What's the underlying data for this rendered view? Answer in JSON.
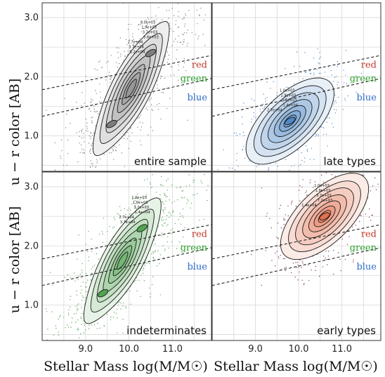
{
  "figure": {
    "x_axis_label": "Stellar Mass log(M/M☉)",
    "y_axis_label": "u − r color [AB]"
  },
  "colors": {
    "red_label": "#c0392b",
    "green_label": "#2ca02c",
    "blue_label": "#2e6bc9"
  },
  "chart_data": [
    {
      "type": "scatter",
      "panel": "entire sample",
      "label": "entire sample",
      "base_color": "#6e6e6e",
      "xlim": [
        8.0,
        11.9
      ],
      "ylim": [
        0.4,
        3.25
      ],
      "xticks": [
        "9.0",
        "10.0",
        "11.0"
      ],
      "yticks": [
        "1.0",
        "2.0",
        "3.0"
      ],
      "dividers": [
        [
          [
            8.0,
            1.78
          ],
          [
            11.9,
            2.36
          ]
        ],
        [
          [
            8.0,
            1.33
          ],
          [
            11.9,
            1.97
          ]
        ]
      ],
      "region_labels": [
        "red",
        "green",
        "blue"
      ],
      "contour_labels": [
        "9.0e+03",
        "1.9e+03",
        "3.7e+03",
        "5.6e+03",
        "2.7e+04",
        "3.7e+04",
        "5.2e+04"
      ],
      "modes": [
        {
          "x": 9.6,
          "y": 1.2
        },
        {
          "x": 10.5,
          "y": 2.4
        }
      ]
    },
    {
      "type": "scatter",
      "panel": "late types",
      "label": "late types",
      "base_color": "#3b7bbf",
      "xlim": [
        8.0,
        11.9
      ],
      "ylim": [
        0.4,
        3.25
      ],
      "xticks": [
        "9.0",
        "10.0",
        "11.0"
      ],
      "yticks": [
        "1.0",
        "2.0",
        "3.0"
      ],
      "dividers": [
        [
          [
            8.0,
            1.78
          ],
          [
            11.9,
            2.36
          ]
        ],
        [
          [
            8.0,
            1.33
          ],
          [
            11.9,
            1.97
          ]
        ]
      ],
      "region_labels": [
        "red",
        "green",
        "blue"
      ],
      "contour_labels": [
        "1.0e+03",
        "1.9e+03",
        "3.7e+03",
        "1.4e+04",
        "2.7e+04"
      ],
      "modes": [
        {
          "x": 9.8,
          "y": 1.25
        }
      ]
    },
    {
      "type": "scatter",
      "panel": "indeterminates",
      "label": "indeterminates",
      "base_color": "#3e9a3e",
      "xlim": [
        8.0,
        11.9
      ],
      "ylim": [
        0.4,
        3.25
      ],
      "xticks": [
        "9.0",
        "10.0",
        "11.0"
      ],
      "yticks": [
        "1.0",
        "2.0",
        "3.0"
      ],
      "dividers": [
        [
          [
            8.0,
            1.78
          ],
          [
            11.9,
            2.36
          ]
        ],
        [
          [
            8.0,
            1.33
          ],
          [
            11.9,
            1.97
          ]
        ]
      ],
      "region_labels": [
        "red",
        "green",
        "blue"
      ],
      "contour_labels": [
        "1.0e+03",
        "1.9e+03",
        "3.7e+03",
        "1.4e+04",
        "2.7e+04",
        "3.7e+04"
      ],
      "modes": [
        {
          "x": 9.4,
          "y": 1.2
        },
        {
          "x": 10.3,
          "y": 2.3
        }
      ]
    },
    {
      "type": "scatter",
      "panel": "early types",
      "label": "early types",
      "base_color": "#e0603a",
      "xlim": [
        8.0,
        11.9
      ],
      "ylim": [
        0.4,
        3.25
      ],
      "xticks": [
        "9.0",
        "10.0",
        "11.0"
      ],
      "yticks": [
        "1.0",
        "2.0",
        "3.0"
      ],
      "dividers": [
        [
          [
            8.0,
            1.78
          ],
          [
            11.9,
            2.36
          ]
        ],
        [
          [
            8.0,
            1.33
          ],
          [
            11.9,
            1.97
          ]
        ]
      ],
      "region_labels": [
        "red",
        "green",
        "blue"
      ],
      "contour_labels": [
        "1.0e+03",
        "1.9e+03",
        "3.7e+03",
        "7.2e+03",
        "1.4e+04"
      ],
      "modes": [
        {
          "x": 10.6,
          "y": 2.5
        }
      ]
    }
  ]
}
